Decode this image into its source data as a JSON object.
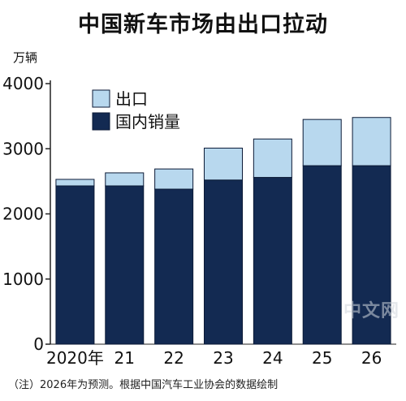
{
  "title": "中国新车市场由出口拉动",
  "unit": "万辆",
  "note": "（注）2026年为预测。根据中国汽车工业协会的数据绘制",
  "watermark_text": "中文网",
  "colors": {
    "domestic": "#132a52",
    "export": "#b8d8ee",
    "axis": "#222222"
  },
  "chart_data": {
    "type": "bar",
    "stacked": true,
    "title": "中国新车市场由出口拉动",
    "ylabel": "万辆",
    "categories": [
      "2020年",
      "21",
      "22",
      "23",
      "24",
      "25",
      "26"
    ],
    "ylim": [
      0,
      4000
    ],
    "yticks": [
      0,
      1000,
      2000,
      3000,
      4000
    ],
    "legend_position": "top-left",
    "series": [
      {
        "name": "国内销量",
        "color": "#132a52",
        "values": [
          2430,
          2430,
          2380,
          2520,
          2560,
          2740,
          2740
        ]
      },
      {
        "name": "出口",
        "color": "#b8d8ee",
        "values": [
          100,
          200,
          310,
          490,
          590,
          710,
          740
        ]
      }
    ],
    "totals": [
      2530,
      2630,
      2690,
      3010,
      3150,
      3450,
      3480
    ]
  }
}
